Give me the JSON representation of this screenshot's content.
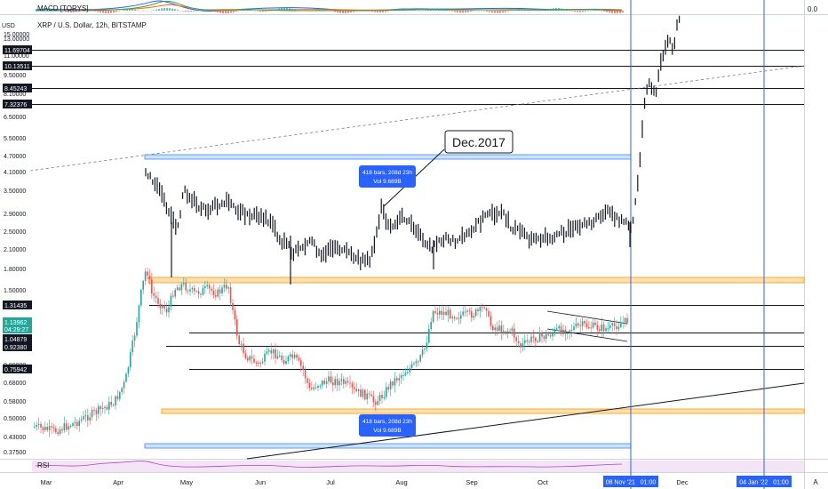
{
  "header": {
    "macd_label": "MACD [TORYS]",
    "macd_value": "0.0",
    "symbol_title": "XRP / U.S. Dollar, 12h, BITSTAMP",
    "currency": "USD",
    "rsi_label": "RSI"
  },
  "colors": {
    "bull": "#26a69a",
    "bear": "#ef5350",
    "highlight_blue": "#2962ff",
    "orange_band": "#ff9800",
    "level_line": "#131722",
    "rsi_bg": "#f3e5f5",
    "grid": "#eef1f5"
  },
  "axis": {
    "price_labels": [
      "15.00000",
      "13.00000",
      "11.00000",
      "9.50000",
      "8.10000",
      "6.50000",
      "5.50000",
      "4.70000",
      "4.10000",
      "3.50000",
      "2.90000",
      "2.50000",
      "2.10000",
      "1.80000",
      "1.50000",
      "0.92380",
      "0.80000",
      "0.68000",
      "0.58000",
      "0.50000",
      "0.43000",
      "0.37500"
    ],
    "boxed_levels": [
      {
        "value": "11.69704",
        "style": "dark"
      },
      {
        "value": "10.13511",
        "style": "dark"
      },
      {
        "value": "8.45243",
        "style": "dark"
      },
      {
        "value": "7.32376",
        "style": "dark"
      },
      {
        "value": "1.31435",
        "style": "dark"
      },
      {
        "value": "1.13962",
        "style": "green"
      },
      {
        "value": "04:29:27",
        "style": "green"
      },
      {
        "value": "1.04879",
        "style": "dark"
      },
      {
        "value": "0.92380",
        "style": "dark"
      },
      {
        "value": "0.75942",
        "style": "dark"
      }
    ],
    "time_labels": [
      "Mar",
      "Apr",
      "May",
      "Jun",
      "Jul",
      "Aug",
      "Sep",
      "Oct",
      "Dec"
    ],
    "time_badges": [
      "08 Nov '21   01:00",
      "04 Jan '22   01:00"
    ],
    "corner": "A"
  },
  "annotations": {
    "callout": "Dec.2017",
    "range_top": {
      "line1": "418 bars, 208d 23h",
      "line2": "Vol 9.689B"
    },
    "range_bottom": {
      "line1": "418 bars, 208d 23h",
      "line2": "Vol 9.689B"
    }
  },
  "chart_data": {
    "type": "candlestick",
    "series": [
      {
        "name": "XRP / U.S. Dollar, 12h, BITSTAMP"
      },
      {
        "name": "Dec.2017"
      }
    ],
    "xlabel": "",
    "ylabel": "",
    "ylim": [
      0.35,
      15.0
    ],
    "log_scale": true,
    "grid": true,
    "levels": [
      11.69704,
      10.13511,
      8.45243,
      7.32376,
      1.31435,
      1.04879,
      0.9238,
      0.75942
    ],
    "current_price": 1.13962
  }
}
